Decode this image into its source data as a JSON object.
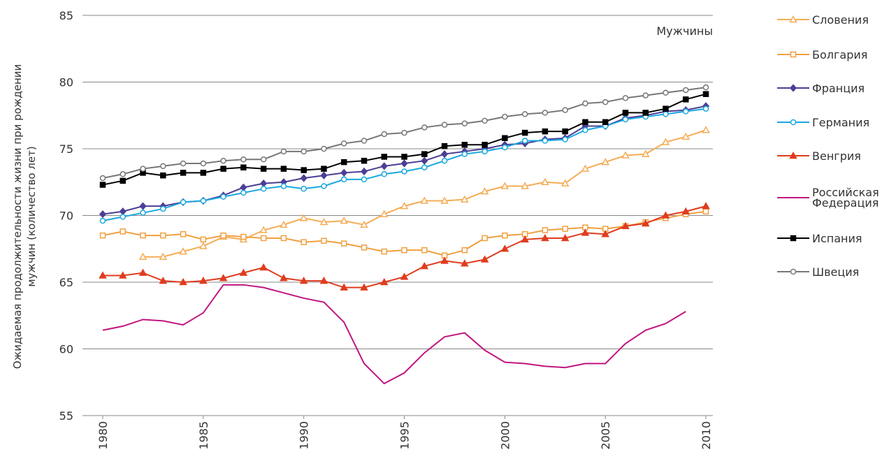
{
  "chart_data": {
    "type": "line",
    "y_label": "Ожидаемая продолжительности жизни при рождении мужчин (количество лет)",
    "annotation": "Мужчины",
    "x": [
      1980,
      1981,
      1982,
      1983,
      1984,
      1985,
      1986,
      1987,
      1988,
      1989,
      1990,
      1991,
      1992,
      1993,
      1994,
      1995,
      1996,
      1997,
      1998,
      1999,
      2000,
      2001,
      2002,
      2003,
      2004,
      2005,
      2006,
      2007,
      2008,
      2009,
      2010
    ],
    "xlim": [
      1980,
      2010
    ],
    "xticks": [
      1980,
      1985,
      1990,
      1995,
      2000,
      2005,
      2010
    ],
    "ylim": [
      55,
      85
    ],
    "yticks": [
      55,
      60,
      65,
      70,
      75,
      80,
      85
    ],
    "grid": true,
    "series": [
      {
        "name": "Словения",
        "color": "#f5ac55",
        "marker": "triangle",
        "marker_fill": false,
        "values": [
          null,
          null,
          66.9,
          66.9,
          67.3,
          67.7,
          68.4,
          68.2,
          68.9,
          69.3,
          69.8,
          69.5,
          69.6,
          69.3,
          70.1,
          70.7,
          71.1,
          71.1,
          71.2,
          71.8,
          72.2,
          72.2,
          72.5,
          72.4,
          73.5,
          74.0,
          74.5,
          74.6,
          75.5,
          75.9,
          76.4
        ]
      },
      {
        "name": "Болгария",
        "color": "#f0a040",
        "marker": "square",
        "marker_fill": false,
        "values": [
          68.5,
          68.8,
          68.5,
          68.5,
          68.6,
          68.2,
          68.5,
          68.4,
          68.3,
          68.3,
          68.0,
          68.1,
          67.9,
          67.6,
          67.3,
          67.4,
          67.4,
          67.0,
          67.4,
          68.3,
          68.5,
          68.6,
          68.9,
          69.0,
          69.1,
          69.0,
          69.2,
          69.5,
          69.8,
          70.1,
          70.3
        ]
      },
      {
        "name": "Франция",
        "color": "#4b3f96",
        "marker": "diamond",
        "marker_fill": true,
        "values": [
          70.1,
          70.3,
          70.7,
          70.7,
          71.0,
          71.1,
          71.5,
          72.1,
          72.4,
          72.5,
          72.8,
          73.0,
          73.2,
          73.3,
          73.7,
          73.9,
          74.1,
          74.6,
          74.8,
          75.0,
          75.3,
          75.4,
          75.7,
          75.8,
          76.7,
          76.7,
          77.3,
          77.5,
          77.8,
          77.9,
          78.2
        ]
      },
      {
        "name": "Германия",
        "color": "#1ba8e0",
        "marker": "circle",
        "marker_fill": false,
        "values": [
          69.6,
          69.9,
          70.2,
          70.5,
          71.0,
          71.1,
          71.4,
          71.7,
          72.0,
          72.2,
          72.0,
          72.2,
          72.7,
          72.7,
          73.1,
          73.3,
          73.6,
          74.1,
          74.6,
          74.8,
          75.1,
          75.6,
          75.6,
          75.7,
          76.4,
          76.7,
          77.2,
          77.4,
          77.6,
          77.8,
          78.0
        ]
      },
      {
        "name": "Венгрия",
        "color": "#e03c1e",
        "marker": "triangle",
        "marker_fill": true,
        "values": [
          65.5,
          65.5,
          65.7,
          65.1,
          65.0,
          65.1,
          65.3,
          65.7,
          66.1,
          65.3,
          65.1,
          65.1,
          64.6,
          64.6,
          65.0,
          65.4,
          66.2,
          66.6,
          66.4,
          66.7,
          67.5,
          68.2,
          68.3,
          68.3,
          68.7,
          68.6,
          69.2,
          69.4,
          70.0,
          70.3,
          70.7
        ]
      },
      {
        "name": "Российская Федерация",
        "color": "#c0157f",
        "marker": "none",
        "marker_fill": false,
        "values": [
          61.4,
          61.7,
          62.2,
          62.1,
          61.8,
          62.7,
          64.8,
          64.8,
          64.6,
          64.2,
          63.8,
          63.5,
          62.0,
          58.9,
          57.4,
          58.2,
          59.7,
          60.9,
          61.2,
          59.9,
          59.0,
          58.9,
          58.7,
          58.6,
          58.9,
          58.9,
          60.4,
          61.4,
          61.9,
          62.8,
          null
        ]
      },
      {
        "name": "Испания",
        "color": "#000000",
        "marker": "square",
        "marker_fill": true,
        "values": [
          72.3,
          72.6,
          73.2,
          73.0,
          73.2,
          73.2,
          73.5,
          73.6,
          73.5,
          73.5,
          73.4,
          73.5,
          74.0,
          74.1,
          74.4,
          74.4,
          74.6,
          75.2,
          75.3,
          75.3,
          75.8,
          76.2,
          76.3,
          76.3,
          77.0,
          77.0,
          77.7,
          77.7,
          78.0,
          78.7,
          79.1
        ]
      },
      {
        "name": "Швеция",
        "color": "#777777",
        "marker": "circle",
        "marker_fill": false,
        "values": [
          72.8,
          73.1,
          73.5,
          73.7,
          73.9,
          73.9,
          74.1,
          74.2,
          74.2,
          74.8,
          74.8,
          75.0,
          75.4,
          75.6,
          76.1,
          76.2,
          76.6,
          76.8,
          76.9,
          77.1,
          77.4,
          77.6,
          77.7,
          77.9,
          78.4,
          78.5,
          78.8,
          79.0,
          79.2,
          79.4,
          79.6
        ]
      }
    ]
  }
}
